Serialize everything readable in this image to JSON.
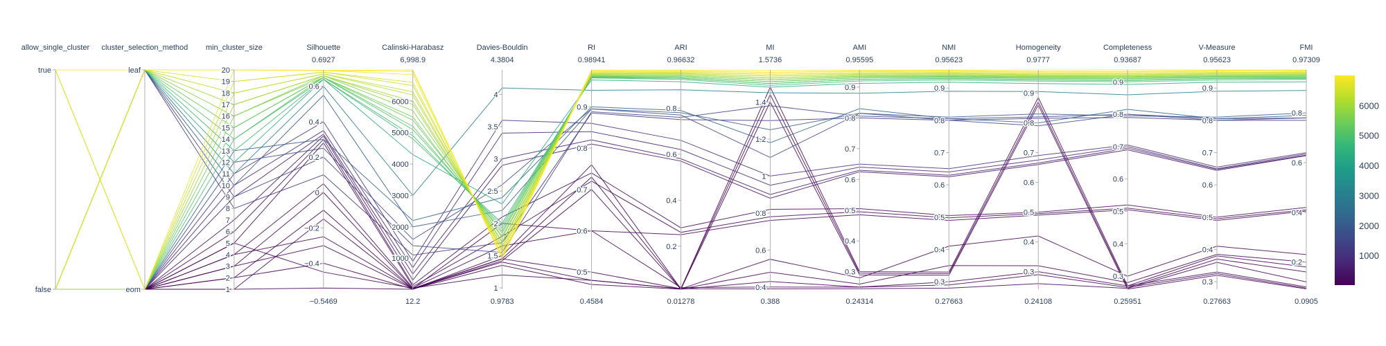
{
  "chart_data": {
    "type": "parallel_coordinates",
    "colorscale": [
      "#440154",
      "#482878",
      "#3e4989",
      "#31688e",
      "#26828e",
      "#1f9e89",
      "#35b779",
      "#6ece58",
      "#b5de2b",
      "#fde725"
    ],
    "color_by": "Calinski-Harabasz",
    "colorbar": {
      "min": 12.2,
      "max": 6998.9,
      "ticks": [
        "1000",
        "2000",
        "3000",
        "4000",
        "5000",
        "6000"
      ],
      "tick_values": [
        1000,
        2000,
        3000,
        4000,
        5000,
        6000
      ]
    },
    "dimensions": [
      {
        "label": "allow_single_cluster",
        "kind": "cat",
        "ticks": [
          "true",
          "false"
        ],
        "tick_values": [
          1,
          0
        ],
        "range": [
          0,
          1
        ]
      },
      {
        "label": "cluster_selection_method",
        "kind": "cat",
        "ticks": [
          "leaf",
          "eom"
        ],
        "tick_values": [
          1,
          0
        ],
        "range": [
          0,
          1
        ]
      },
      {
        "label": "min_cluster_size",
        "kind": "num",
        "range": [
          1,
          20
        ],
        "min_label": "",
        "max_label": "",
        "ticks": [
          "1",
          "2",
          "3",
          "4",
          "5",
          "6",
          "7",
          "8",
          "9",
          "10",
          "11",
          "12",
          "13",
          "14",
          "15",
          "16",
          "17",
          "18",
          "19",
          "20"
        ],
        "tick_values": [
          1,
          2,
          3,
          4,
          5,
          6,
          7,
          8,
          9,
          10,
          11,
          12,
          13,
          14,
          15,
          16,
          17,
          18,
          19,
          20
        ]
      },
      {
        "label": "Silhouette",
        "kind": "num",
        "range": [
          -0.5469,
          0.6927
        ],
        "min_label": "−0.5469",
        "max_label": "0.6927",
        "ticks": [
          "−0.4",
          "−0.2",
          "0",
          "0.2",
          "0.4",
          "0.6"
        ],
        "tick_values": [
          -0.4,
          -0.2,
          0,
          0.2,
          0.4,
          0.6
        ]
      },
      {
        "label": "Calinski-Harabasz",
        "kind": "num",
        "range": [
          12.2,
          6998.9
        ],
        "min_label": "12.2",
        "max_label": "6,998.9",
        "ticks": [
          "1000",
          "2000",
          "3000",
          "4000",
          "5000",
          "6000"
        ],
        "tick_values": [
          1000,
          2000,
          3000,
          4000,
          5000,
          6000
        ]
      },
      {
        "label": "Davies-Bouldin",
        "kind": "num",
        "range": [
          0.9783,
          4.3804
        ],
        "min_label": "0.9783",
        "max_label": "4.3804",
        "ticks": [
          "1",
          "1.5",
          "2",
          "2.5",
          "3",
          "3.5",
          "4"
        ],
        "tick_values": [
          1,
          1.5,
          2,
          2.5,
          3,
          3.5,
          4
        ]
      },
      {
        "label": "RI",
        "kind": "num",
        "range": [
          0.4584,
          0.98941
        ],
        "min_label": "0.4584",
        "max_label": "0.98941",
        "ticks": [
          "0.5",
          "0.6",
          "0.7",
          "0.8",
          "0.9"
        ],
        "tick_values": [
          0.5,
          0.6,
          0.7,
          0.8,
          0.9
        ]
      },
      {
        "label": "ARI",
        "kind": "num",
        "range": [
          0.01278,
          0.96632
        ],
        "min_label": "0.01278",
        "max_label": "0.96632",
        "ticks": [
          "0.2",
          "0.4",
          "0.6",
          "0.8"
        ],
        "tick_values": [
          0.2,
          0.4,
          0.6,
          0.8
        ]
      },
      {
        "label": "MI",
        "kind": "num",
        "range": [
          0.388,
          1.5736
        ],
        "min_label": "0.388",
        "max_label": "1.5736",
        "ticks": [
          "0.4",
          "0.6",
          "0.8",
          "1",
          "1.2",
          "1.4"
        ],
        "tick_values": [
          0.4,
          0.6,
          0.8,
          1,
          1.2,
          1.4
        ]
      },
      {
        "label": "AMI",
        "kind": "num",
        "range": [
          0.24314,
          0.95595
        ],
        "min_label": "0.24314",
        "max_label": "0.95595",
        "ticks": [
          "0.3",
          "0.4",
          "0.5",
          "0.6",
          "0.7",
          "0.8",
          "0.9"
        ],
        "tick_values": [
          0.3,
          0.4,
          0.5,
          0.6,
          0.7,
          0.8,
          0.9
        ]
      },
      {
        "label": "NMI",
        "kind": "num",
        "range": [
          0.27663,
          0.95623
        ],
        "min_label": "0.27663",
        "max_label": "0.95623",
        "ticks": [
          "0.3",
          "0.4",
          "0.5",
          "0.6",
          "0.7",
          "0.8",
          "0.9"
        ],
        "tick_values": [
          0.3,
          0.4,
          0.5,
          0.6,
          0.7,
          0.8,
          0.9
        ]
      },
      {
        "label": "Homogeneity",
        "kind": "num",
        "range": [
          0.24108,
          0.9777
        ],
        "min_label": "0.24108",
        "max_label": "0.9777",
        "ticks": [
          "0.3",
          "0.4",
          "0.5",
          "0.6",
          "0.7",
          "0.8",
          "0.9"
        ],
        "tick_values": [
          0.3,
          0.4,
          0.5,
          0.6,
          0.7,
          0.8,
          0.9
        ]
      },
      {
        "label": "Completeness",
        "kind": "num",
        "range": [
          0.25951,
          0.93687
        ],
        "min_label": "0.25951",
        "max_label": "0.93687",
        "ticks": [
          "0.3",
          "0.4",
          "0.5",
          "0.6",
          "0.7",
          "0.8",
          "0.9"
        ],
        "tick_values": [
          0.3,
          0.4,
          0.5,
          0.6,
          0.7,
          0.8,
          0.9
        ]
      },
      {
        "label": "V-Measure",
        "kind": "num",
        "range": [
          0.27663,
          0.95623
        ],
        "min_label": "0.27663",
        "max_label": "0.95623",
        "ticks": [
          "0.3",
          "0.4",
          "0.5",
          "0.6",
          "0.7",
          "0.8",
          "0.9"
        ],
        "tick_values": [
          0.3,
          0.4,
          0.5,
          0.6,
          0.7,
          0.8,
          0.9
        ]
      },
      {
        "label": "FMI",
        "kind": "num",
        "range": [
          0.0905,
          0.97309
        ],
        "min_label": "0.0905",
        "max_label": "0.97309",
        "ticks": [
          "0.2",
          "0.4",
          "0.6",
          "0.8"
        ],
        "tick_values": [
          0.2,
          0.4,
          0.6,
          0.8
        ]
      }
    ],
    "rows": [
      [
        1,
        1,
        20,
        0.69,
        6999,
        1.45,
        0.989,
        0.966,
        1.57,
        0.955,
        0.956,
        0.977,
        0.937,
        0.956,
        0.973
      ],
      [
        0,
        1,
        20,
        0.69,
        6950,
        1.48,
        0.985,
        0.96,
        1.56,
        0.95,
        0.952,
        0.97,
        0.93,
        0.952,
        0.97
      ],
      [
        0,
        1,
        19,
        0.68,
        6600,
        1.55,
        0.982,
        0.955,
        1.55,
        0.945,
        0.948,
        0.965,
        0.925,
        0.948,
        0.965
      ],
      [
        0,
        1,
        18,
        0.67,
        6300,
        1.62,
        0.98,
        0.95,
        1.54,
        0.942,
        0.945,
        0.962,
        0.922,
        0.945,
        0.96
      ],
      [
        0,
        1,
        17,
        0.66,
        6000,
        1.7,
        0.978,
        0.945,
        1.53,
        0.938,
        0.942,
        0.958,
        0.918,
        0.942,
        0.955
      ],
      [
        0,
        1,
        16,
        0.66,
        5700,
        1.78,
        0.976,
        0.94,
        1.52,
        0.935,
        0.938,
        0.955,
        0.915,
        0.938,
        0.95
      ],
      [
        0,
        1,
        15,
        0.65,
        5400,
        1.85,
        0.974,
        0.935,
        1.51,
        0.93,
        0.935,
        0.95,
        0.91,
        0.935,
        0.945
      ],
      [
        0,
        1,
        14,
        0.65,
        5100,
        1.92,
        0.972,
        0.93,
        1.5,
        0.925,
        0.93,
        0.945,
        0.905,
        0.93,
        0.94
      ],
      [
        0,
        1,
        13,
        0.64,
        4800,
        2.0,
        0.97,
        0.925,
        1.49,
        0.92,
        0.925,
        0.94,
        0.9,
        0.925,
        0.935
      ],
      [
        0,
        1,
        12,
        0.64,
        4300,
        2.3,
        0.965,
        0.915,
        1.48,
        0.912,
        0.918,
        0.932,
        0.892,
        0.918,
        0.925
      ],
      [
        0,
        1,
        11,
        0.6,
        3000,
        4.1,
        0.94,
        0.88,
        1.45,
        0.88,
        0.89,
        0.905,
        0.86,
        0.89,
        0.89
      ],
      [
        0,
        1,
        10,
        0.55,
        2000,
        2.2,
        0.895,
        0.78,
        1.25,
        0.815,
        0.81,
        0.83,
        0.795,
        0.81,
        0.8
      ],
      [
        0,
        1,
        9,
        0.2,
        1400,
        1.55,
        0.888,
        0.76,
        1.38,
        0.806,
        0.805,
        0.82,
        0.8,
        0.805,
        0.78
      ],
      [
        0,
        1,
        8,
        0.1,
        1100,
        1.7,
        0.885,
        0.75,
        1.3,
        0.8,
        0.8,
        0.815,
        0.79,
        0.8,
        0.77
      ],
      [
        1,
        0,
        20,
        0.69,
        6850,
        1.5,
        0.987,
        0.962,
        1.56,
        0.952,
        0.954,
        0.972,
        0.932,
        0.954,
        0.968
      ],
      [
        1,
        0,
        19,
        0.68,
        6500,
        1.58,
        0.983,
        0.956,
        1.55,
        0.946,
        0.949,
        0.966,
        0.926,
        0.949,
        0.962
      ],
      [
        1,
        0,
        18,
        0.67,
        6200,
        1.65,
        0.98,
        0.951,
        1.54,
        0.942,
        0.945,
        0.961,
        0.921,
        0.945,
        0.958
      ],
      [
        0,
        0,
        17,
        0.66,
        5900,
        1.72,
        0.978,
        0.946,
        1.53,
        0.938,
        0.941,
        0.957,
        0.917,
        0.941,
        0.953
      ],
      [
        0,
        0,
        16,
        0.65,
        5500,
        1.8,
        0.975,
        0.94,
        1.52,
        0.934,
        0.937,
        0.953,
        0.913,
        0.937,
        0.948
      ],
      [
        0,
        0,
        15,
        0.65,
        5200,
        1.88,
        0.973,
        0.935,
        1.51,
        0.93,
        0.933,
        0.949,
        0.909,
        0.933,
        0.943
      ],
      [
        0,
        0,
        14,
        0.64,
        4900,
        1.96,
        0.971,
        0.93,
        1.5,
        0.925,
        0.929,
        0.944,
        0.904,
        0.929,
        0.938
      ],
      [
        0,
        0,
        13,
        0.3,
        2200,
        2.4,
        0.9,
        0.79,
        1.18,
        0.83,
        0.805,
        0.8,
        0.815,
        0.805,
        0.79
      ],
      [
        0,
        0,
        12,
        0.25,
        1600,
        2.6,
        0.895,
        0.77,
        1.1,
        0.815,
        0.8,
        0.79,
        0.8,
        0.8,
        0.78
      ],
      [
        0,
        0,
        11,
        0.4,
        900,
        3.6,
        0.86,
        0.66,
        1.0,
        0.65,
        0.65,
        0.69,
        0.705,
        0.655,
        0.64
      ],
      [
        0,
        0,
        10,
        0.35,
        700,
        3.4,
        0.84,
        0.62,
        0.95,
        0.64,
        0.64,
        0.675,
        0.7,
        0.65,
        0.635
      ],
      [
        0,
        0,
        9,
        0.33,
        500,
        3.0,
        0.82,
        0.58,
        0.9,
        0.63,
        0.63,
        0.665,
        0.695,
        0.648,
        0.63
      ],
      [
        0,
        0,
        7,
        0.32,
        300,
        2.9,
        0.81,
        0.57,
        0.88,
        0.625,
        0.625,
        0.66,
        0.69,
        0.645,
        0.628
      ],
      [
        0,
        0,
        6,
        0.3,
        150,
        2.1,
        0.74,
        0.28,
        0.82,
        0.505,
        0.505,
        0.5,
        0.52,
        0.5,
        0.42
      ],
      [
        0,
        0,
        5,
        0.28,
        100,
        1.8,
        0.72,
        0.26,
        0.78,
        0.495,
        0.498,
        0.495,
        0.51,
        0.495,
        0.41
      ],
      [
        0,
        0,
        4,
        0.05,
        60,
        1.65,
        0.6,
        0.25,
        0.76,
        0.485,
        0.49,
        0.49,
        0.505,
        0.49,
        0.405
      ],
      [
        0,
        0,
        3,
        0.0,
        40,
        1.45,
        0.5,
        0.015,
        1.48,
        0.3,
        0.33,
        0.885,
        0.27,
        0.33,
        0.1
      ],
      [
        0,
        0,
        2,
        -0.1,
        30,
        1.4,
        0.48,
        0.015,
        1.44,
        0.295,
        0.325,
        0.87,
        0.265,
        0.325,
        0.095
      ],
      [
        0,
        0,
        1,
        -0.15,
        20,
        1.35,
        0.47,
        0.013,
        1.4,
        0.29,
        0.32,
        0.86,
        0.26,
        0.32,
        0.092
      ],
      [
        0,
        0,
        3,
        -0.3,
        25,
        1.5,
        0.76,
        0.015,
        0.55,
        0.28,
        0.41,
        0.42,
        0.3,
        0.41,
        0.23
      ],
      [
        0,
        0,
        2,
        -0.4,
        18,
        1.45,
        0.73,
        0.014,
        0.48,
        0.26,
        0.35,
        0.32,
        0.28,
        0.385,
        0.2
      ],
      [
        0,
        0,
        1,
        -0.54,
        13,
        1.42,
        0.7,
        0.013,
        0.43,
        0.25,
        0.3,
        0.3,
        0.27,
        0.38,
        0.18
      ],
      [
        0,
        0,
        4,
        -0.25,
        35,
        2.0,
        0.6,
        0.02,
        0.4,
        0.25,
        0.29,
        0.29,
        0.265,
        0.37,
        0.16
      ],
      [
        0,
        0,
        5,
        -0.45,
        45,
        1.2,
        0.48,
        0.015,
        0.39,
        0.245,
        0.28,
        0.26,
        0.262,
        0.36,
        0.12
      ]
    ]
  }
}
